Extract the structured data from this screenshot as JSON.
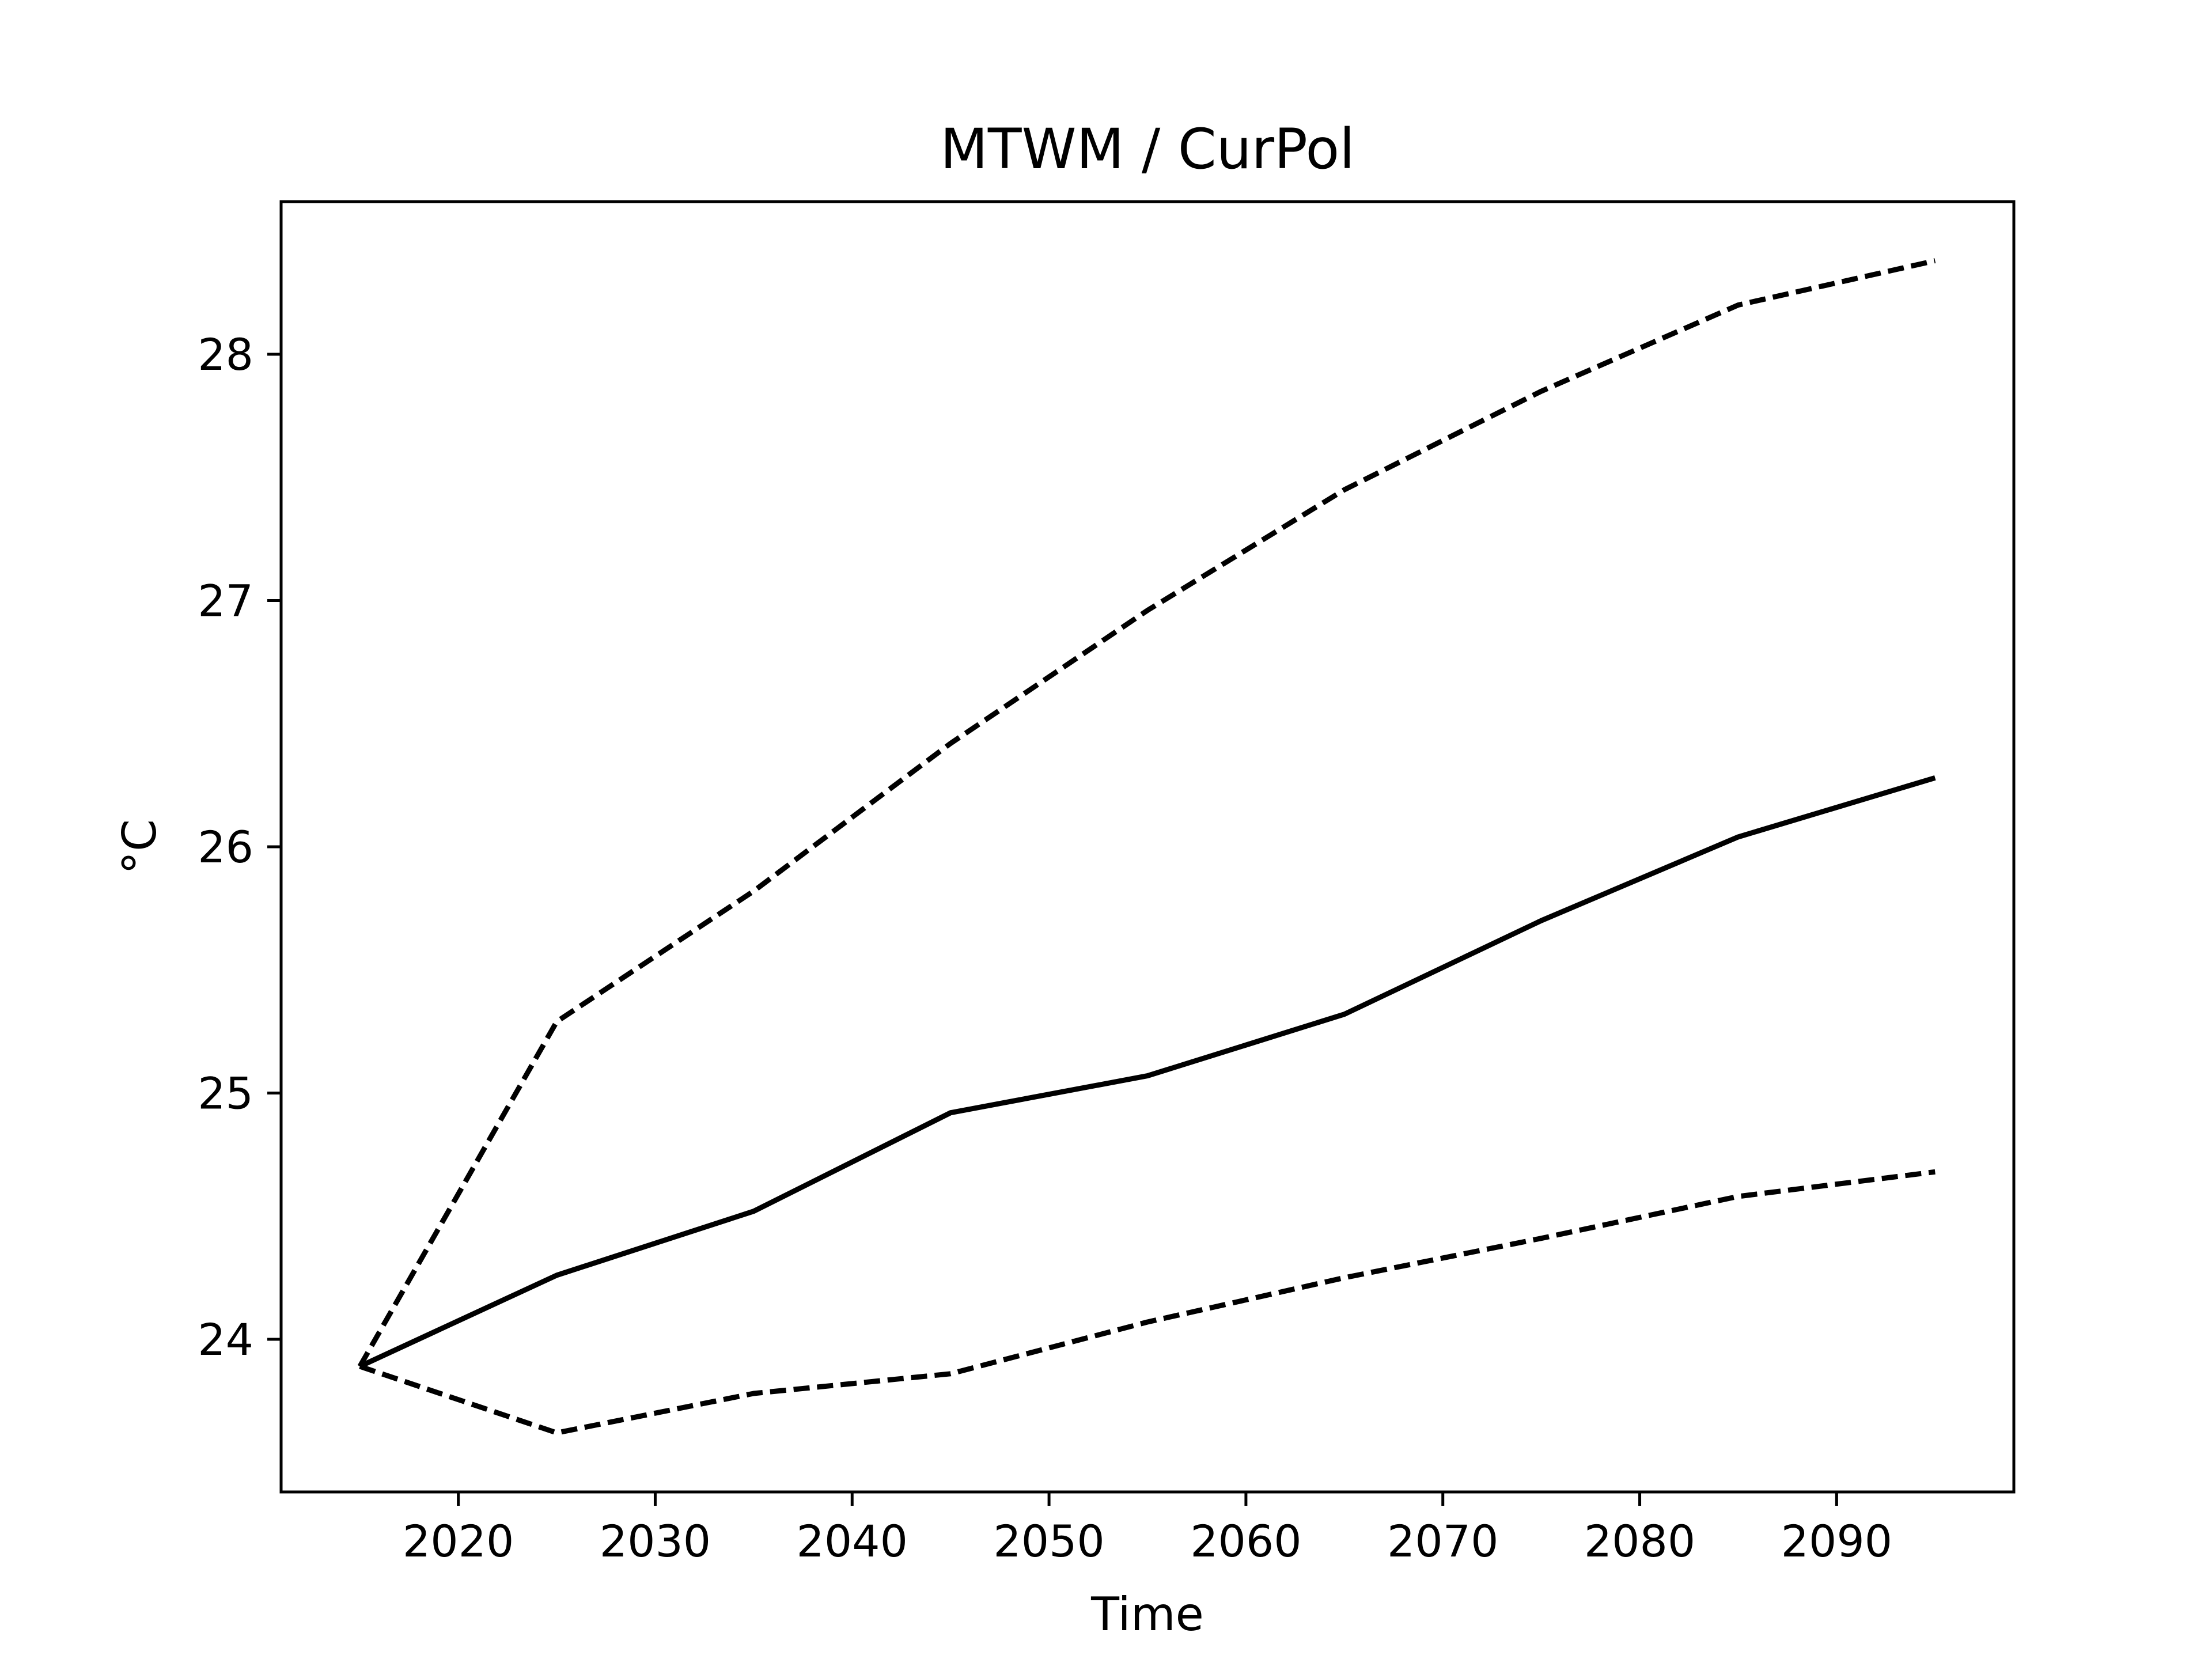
{
  "chart_data": {
    "type": "line",
    "title": "MTWM / CurPol",
    "xlabel": "Time",
    "ylabel": "°C",
    "x": [
      2015,
      2025,
      2035,
      2045,
      2055,
      2065,
      2075,
      2085,
      2095
    ],
    "series": [
      {
        "line_style": "solid",
        "color": "#000000",
        "values": [
          23.89,
          24.26,
          24.52,
          24.92,
          25.07,
          25.32,
          25.7,
          26.04,
          26.28
        ]
      },
      {
        "line_style": "dashed",
        "color": "#000000",
        "values": [
          23.89,
          25.29,
          25.82,
          26.42,
          26.96,
          27.45,
          27.85,
          28.2,
          28.38
        ]
      },
      {
        "line_style": "dashed",
        "color": "#000000",
        "values": [
          23.89,
          23.62,
          23.78,
          23.86,
          24.07,
          24.25,
          24.41,
          24.58,
          24.68
        ]
      }
    ],
    "xlim": [
      2011,
      2099
    ],
    "ylim": [
      23.38,
      28.62
    ],
    "xticks": [
      2020,
      2030,
      2040,
      2050,
      2060,
      2070,
      2080,
      2090
    ],
    "yticks": [
      24,
      25,
      26,
      27,
      28
    ],
    "grid": false,
    "legend": "none"
  }
}
